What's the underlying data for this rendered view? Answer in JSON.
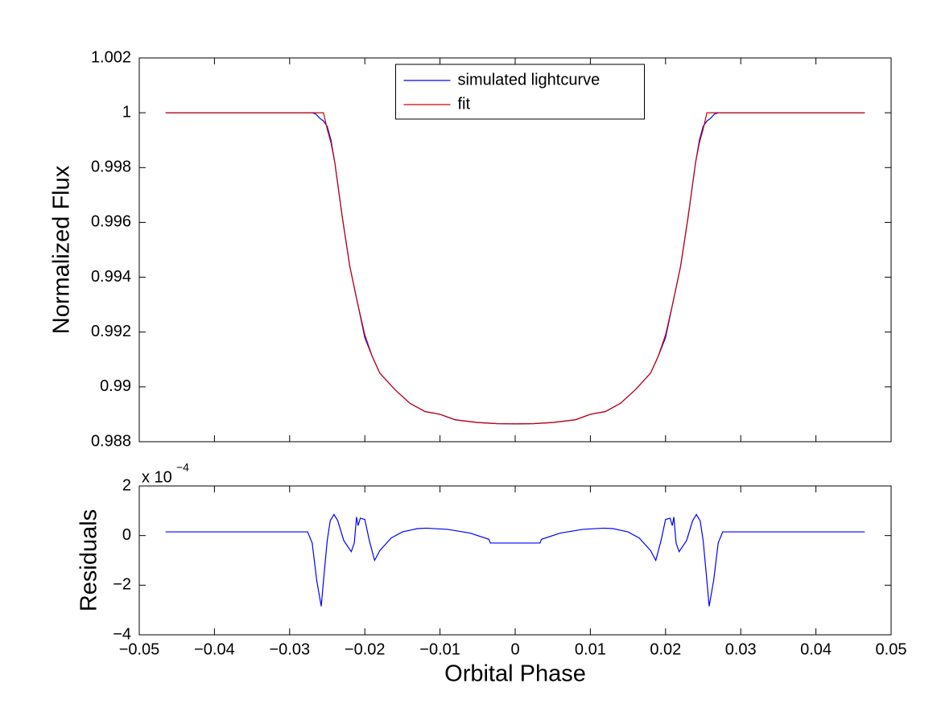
{
  "chart_data": [
    {
      "type": "line",
      "ylabel": "Normalized Flux",
      "x": [
        -0.0465,
        -0.03,
        -0.0275,
        -0.027,
        -0.0265,
        -0.026,
        -0.0255,
        -0.025,
        -0.0245,
        -0.024,
        -0.023,
        -0.022,
        -0.021,
        -0.02,
        -0.019,
        -0.018,
        -0.016,
        -0.014,
        -0.012,
        -0.01,
        -0.008,
        -0.005,
        -0.0025,
        0,
        0.0025,
        0.005,
        0.008,
        0.01,
        0.012,
        0.014,
        0.016,
        0.018,
        0.019,
        0.02,
        0.021,
        0.022,
        0.023,
        0.024,
        0.0245,
        0.025,
        0.0255,
        0.026,
        0.0265,
        0.027,
        0.0275,
        0.03,
        0.0465
      ],
      "series": [
        {
          "name": "simulated lightcurve",
          "color": "#0000ff",
          "values": [
            1,
            1,
            1,
            1,
            0.99995,
            0.9998,
            0.9997,
            0.9995,
            0.999,
            0.9982,
            0.9962,
            0.9944,
            0.9931,
            0.9918,
            0.9911,
            0.9905,
            0.9899,
            0.9894,
            0.9891,
            0.989,
            0.9888,
            0.9887,
            0.98866,
            0.98865,
            0.98866,
            0.9887,
            0.9888,
            0.989,
            0.9891,
            0.9894,
            0.9899,
            0.9905,
            0.9911,
            0.9918,
            0.9931,
            0.9944,
            0.9962,
            0.9982,
            0.999,
            0.9995,
            0.9997,
            0.9998,
            0.99995,
            1,
            1,
            1,
            1
          ]
        },
        {
          "name": "fit",
          "color": "#cc0000",
          "values": [
            1,
            1,
            1,
            1,
            1,
            1,
            1,
            0.9994,
            0.9989,
            0.9982,
            0.9962,
            0.9944,
            0.9931,
            0.9919,
            0.9911,
            0.9905,
            0.9899,
            0.9894,
            0.9891,
            0.989,
            0.9888,
            0.9887,
            0.98866,
            0.98865,
            0.98866,
            0.9887,
            0.9888,
            0.989,
            0.9891,
            0.9894,
            0.9899,
            0.9905,
            0.9911,
            0.9919,
            0.9931,
            0.9944,
            0.9962,
            0.9982,
            0.9989,
            0.9994,
            1,
            1,
            1,
            1,
            1,
            1,
            1
          ]
        }
      ],
      "xlim": [
        -0.05,
        0.05
      ],
      "xticks": [
        -0.05,
        -0.04,
        -0.03,
        -0.02,
        -0.01,
        0,
        0.01,
        0.02,
        0.03,
        0.04,
        0.05
      ],
      "ylim": [
        0.988,
        1.002
      ],
      "yticks": [
        0.988,
        0.99,
        0.992,
        0.994,
        0.996,
        0.998,
        1,
        1.002
      ],
      "legend": "upper center",
      "grid": false
    },
    {
      "type": "line",
      "ylabel": "Residuals",
      "xlabel": "Orbital Phase",
      "y_multiplier": "x 10",
      "y_multiplier_exponent": "−4",
      "x": [
        -0.0465,
        -0.0276,
        -0.027,
        -0.0264,
        -0.0258,
        -0.0254,
        -0.025,
        -0.0246,
        -0.0241,
        -0.0236,
        -0.0228,
        -0.0218,
        -0.0214,
        -0.0211,
        -0.0209,
        -0.0206,
        -0.02,
        -0.0194,
        -0.0187,
        -0.018,
        -0.0165,
        -0.015,
        -0.013,
        -0.0118,
        -0.009,
        -0.006,
        -0.0035,
        -0.0033,
        0,
        0.0033,
        0.0035,
        0.006,
        0.009,
        0.0118,
        0.013,
        0.015,
        0.0165,
        0.018,
        0.0187,
        0.0194,
        0.02,
        0.0206,
        0.0209,
        0.0211,
        0.0214,
        0.0218,
        0.0228,
        0.0236,
        0.0241,
        0.0246,
        0.025,
        0.0254,
        0.0258,
        0.0264,
        0.027,
        0.0276,
        0.0465
      ],
      "series": [
        {
          "name": "residuals",
          "color": "#0000ff",
          "values": [
            0.15,
            0.15,
            -0.3,
            -1.8,
            -2.85,
            -1.5,
            -0.2,
            0.6,
            0.85,
            0.6,
            -0.2,
            -0.65,
            -0.3,
            0.75,
            0.4,
            0.7,
            0.65,
            -0.2,
            -1.0,
            -0.6,
            -0.1,
            0.15,
            0.28,
            0.3,
            0.25,
            0.1,
            -0.15,
            -0.3,
            -0.3,
            -0.3,
            -0.15,
            0.1,
            0.25,
            0.3,
            0.28,
            0.15,
            -0.1,
            -0.6,
            -1.0,
            -0.2,
            0.65,
            0.7,
            0.4,
            0.75,
            -0.3,
            -0.65,
            -0.2,
            0.6,
            0.85,
            0.6,
            -0.2,
            -1.5,
            -2.85,
            -1.8,
            -0.3,
            0.15,
            0.15
          ]
        }
      ],
      "xlim": [
        -0.05,
        0.05
      ],
      "xticks": [
        {
          "value": -0.05,
          "label": "−0.05"
        },
        {
          "value": -0.04,
          "label": "−0.04"
        },
        {
          "value": -0.03,
          "label": "−0.03"
        },
        {
          "value": -0.02,
          "label": "−0.02"
        },
        {
          "value": -0.01,
          "label": "−0.01"
        },
        0,
        0.01,
        0.02,
        0.03,
        0.04,
        0.05
      ],
      "ylim": [
        -4,
        2
      ],
      "yticks": [
        {
          "value": -4,
          "label": "−4"
        },
        {
          "value": -2,
          "label": "−2"
        },
        0,
        2
      ],
      "grid": false
    }
  ]
}
